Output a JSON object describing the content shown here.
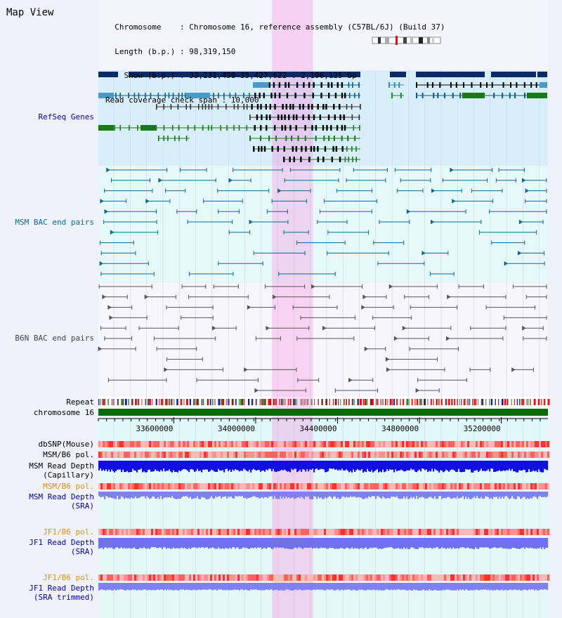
{
  "title": "Map View",
  "info_lines": [
    "  Chromosome    : Chromosome 16, reference assembly (C57BL/6J) (Build 37)",
    "  Length (b.p.) : 98,319,150",
    "    Show (b.p.) : 33,231,498-35,427,622 : 2,196,125 bp",
    "Read coverage check span : 10,000"
  ],
  "region": {
    "start": 33231498,
    "end": 35427622,
    "highlight_start": 34080000,
    "highlight_end": 34280000
  },
  "ruler": {
    "tick_labels": [
      "33600000",
      "34000000",
      "34400000",
      "34800000",
      "35200000"
    ],
    "tick_values": [
      33600000,
      34000000,
      34400000,
      34800000,
      35200000
    ]
  },
  "tracks": {
    "refseq": {
      "label": "RefSeq Genes",
      "color": "#000099"
    },
    "msm_bac": {
      "label": "MSM BAC end pairs",
      "color": "#0a6a8a"
    },
    "b6n_bac": {
      "label": "B6N BAC end pairs",
      "color": "#444444"
    },
    "repeat": {
      "label": "Repeat",
      "color": "#000000"
    },
    "chromosome": {
      "label": "chromosome 16",
      "color": "#000000"
    },
    "dbsnp": {
      "label": "dbSNP(Mouse)",
      "color": "#000000"
    },
    "msm_pol": {
      "label": "MSM/B6 pol.",
      "color": "#000000"
    },
    "msm_depth_cap": {
      "label": "MSM Read Depth",
      "sub": "(Capillary)",
      "color": "#000000"
    },
    "msm_pol2": {
      "label": "MSM/B6 pol.",
      "color": "#e09000"
    },
    "msm_depth_sra": {
      "label": "MSM Read Depth",
      "sub": "(SRA)",
      "color": "#000099"
    },
    "jf1_pol": {
      "label": "JF1/B6 pol.",
      "color": "#e09000"
    },
    "jf1_depth_sra": {
      "label": "JF1 Read Depth",
      "sub": "(SRA)",
      "color": "#000099"
    },
    "jf1_pol2": {
      "label": "JF1/B6 pol.",
      "color": "#e09000"
    },
    "jf1_depth_trim": {
      "label": "JF1 Read Depth",
      "sub": "(SRA trimmed)",
      "color": "#000099"
    }
  }
}
